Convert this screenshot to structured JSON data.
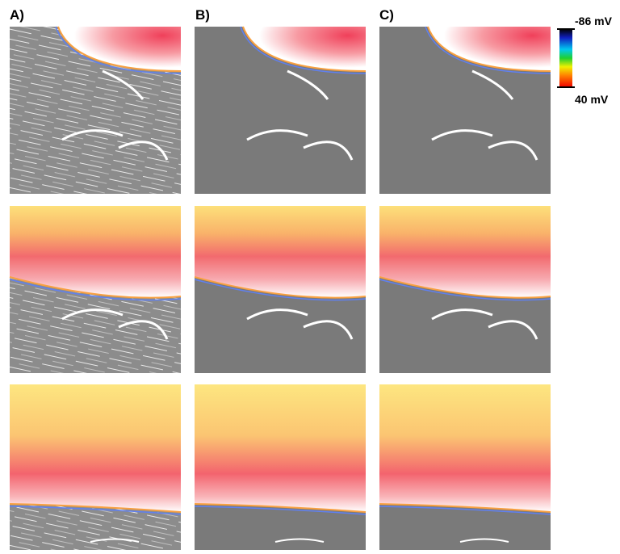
{
  "panel_labels": [
    "A)",
    "B)",
    "C)"
  ],
  "colorbar": {
    "top_label": "-86 mV",
    "bottom_label": "40 mV"
  }
}
